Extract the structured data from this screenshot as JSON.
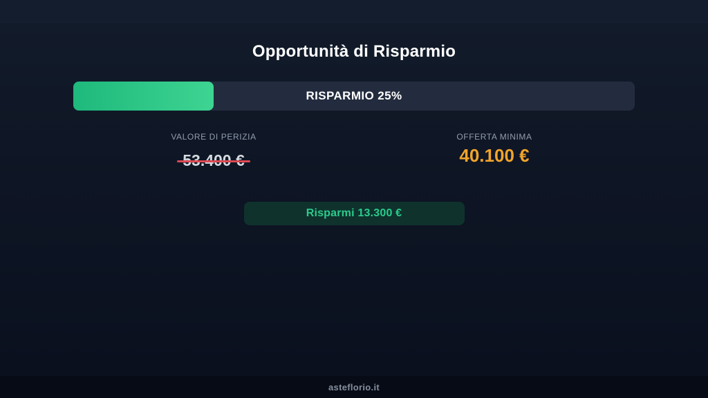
{
  "page": {
    "title": "Opportunità di Risparmio",
    "footer_text": "asteflorio.it"
  },
  "progress": {
    "label": "RISPARMIO 25%",
    "percent": 25,
    "track_color": "#232c3e",
    "fill_gradient_start": "#1eb97c",
    "fill_gradient_end": "#3ed492"
  },
  "comparison": {
    "appraisal": {
      "label": "VALORE DI PERIZIA",
      "value": "53.400 €",
      "strikethrough": true,
      "strike_color": "#dd4a52",
      "value_color": "#d5d9e0"
    },
    "minimum_offer": {
      "label": "OFFERTA MINIMA",
      "value": "40.100 €",
      "value_color": "#f1a42b"
    }
  },
  "savings_badge": {
    "label": "Risparmi 13.300 €",
    "text_color": "#2bcb8d",
    "bg_color": "#0f322d"
  }
}
